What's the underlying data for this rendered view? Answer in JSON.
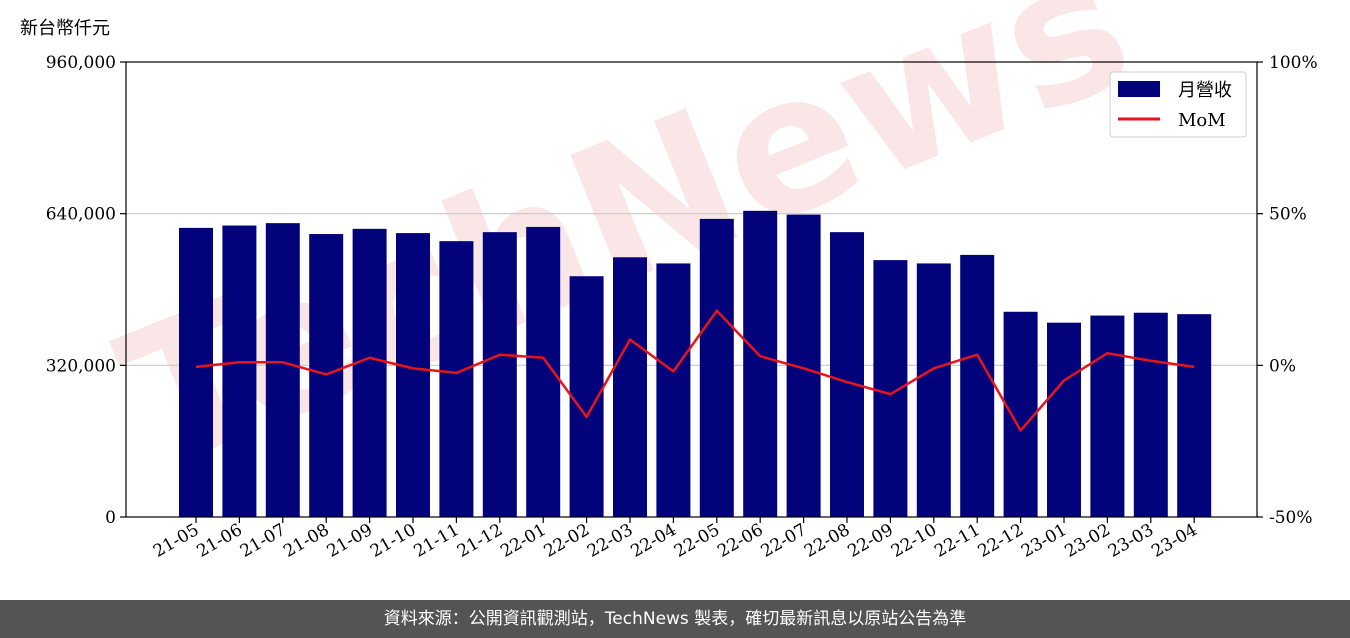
{
  "chart_data": {
    "type": "bar",
    "y_unit_label": "新台幣仟元",
    "categories": [
      "21-05",
      "21-06",
      "21-07",
      "21-08",
      "21-09",
      "21-10",
      "21-11",
      "21-12",
      "22-01",
      "22-02",
      "22-03",
      "22-04",
      "22-05",
      "22-06",
      "22-07",
      "22-08",
      "22-09",
      "22-10",
      "22-11",
      "22-12",
      "23-01",
      "23-02",
      "23-03",
      "23-04"
    ],
    "y_left": {
      "range": [
        0,
        960000
      ],
      "ticks": [
        "0",
        "320,000",
        "640,000",
        "960,000"
      ],
      "tick_values": [
        0,
        320000,
        640000,
        960000
      ]
    },
    "y_right": {
      "range": [
        -50,
        100
      ],
      "ticks": [
        "-50%",
        "0%",
        "50%",
        "100%"
      ],
      "tick_values": [
        -50,
        0,
        50,
        100
      ]
    },
    "grid": "horizontal",
    "legend_placement": "top-right",
    "series": [
      {
        "name": "月營收",
        "type": "bar",
        "color": "#02027a",
        "axis": "left",
        "values": [
          610000,
          615000,
          620000,
          597000,
          608000,
          599000,
          582000,
          601000,
          612000,
          508000,
          548000,
          535000,
          629000,
          646000,
          638000,
          601000,
          542000,
          535000,
          553000,
          433000,
          410000,
          425000,
          431000,
          428000
        ]
      },
      {
        "name": "MoM",
        "type": "line",
        "color": "#e8141b",
        "axis": "right",
        "values": [
          -0.5,
          1.0,
          1.0,
          -3.0,
          2.5,
          -1.0,
          -2.5,
          3.5,
          2.5,
          -17.0,
          8.5,
          -2.0,
          18.0,
          3.0,
          -1.0,
          -5.5,
          -9.5,
          -1.0,
          3.5,
          -21.5,
          -5.0,
          4.0,
          1.5,
          -0.5
        ]
      }
    ]
  },
  "watermark": "TechNews",
  "footer": {
    "source_text": "資料來源：公開資訊觀測站，TechNews 製表，確切最新訊息以原站公告為準"
  }
}
